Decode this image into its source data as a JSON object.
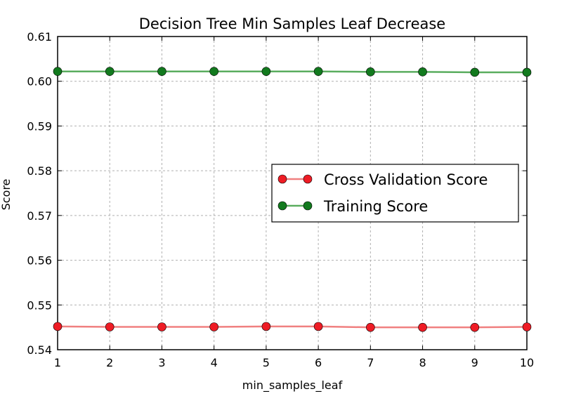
{
  "chart_data": {
    "type": "line",
    "title": "Decision Tree Min Samples Leaf Decrease",
    "xlabel": "min_samples_leaf",
    "ylabel": "Score",
    "x": [
      1,
      2,
      3,
      4,
      5,
      6,
      7,
      8,
      9,
      10
    ],
    "xlim": [
      1,
      10
    ],
    "ylim": [
      0.54,
      0.61
    ],
    "xticks": [
      "1",
      "2",
      "3",
      "4",
      "5",
      "6",
      "7",
      "8",
      "9",
      "10"
    ],
    "yticks": [
      "0.54",
      "0.55",
      "0.56",
      "0.57",
      "0.58",
      "0.59",
      "0.60",
      "0.61"
    ],
    "grid": true,
    "legend_position": "center-right",
    "series": [
      {
        "name": "Cross Validation Score",
        "color": "#ee1c25",
        "line_color": "#f08080",
        "values": [
          0.5452,
          0.5451,
          0.5451,
          0.5451,
          0.5452,
          0.5452,
          0.545,
          0.545,
          0.545,
          0.5451
        ]
      },
      {
        "name": "Training Score",
        "color": "#127a1e",
        "line_color": "#5aad5f",
        "values": [
          0.6022,
          0.6022,
          0.6022,
          0.6022,
          0.6022,
          0.6022,
          0.6021,
          0.6021,
          0.602,
          0.602
        ]
      }
    ]
  }
}
